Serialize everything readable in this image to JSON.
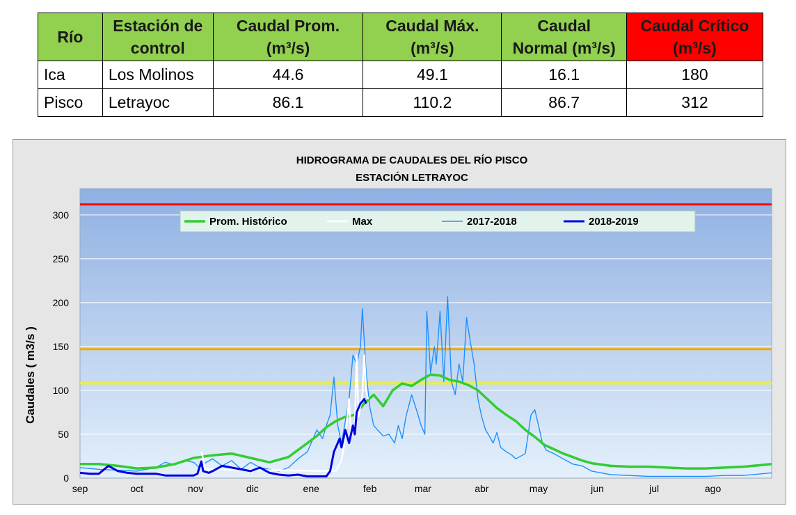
{
  "table": {
    "headers": [
      "Río",
      "Estación de\ncontrol",
      "Caudal Prom.\n(m³/s)",
      "Caudal Máx.\n(m³/s)",
      "Caudal\nNormal (m³/s)",
      "Caudal Crítico\n(m³/s)"
    ],
    "rows": [
      [
        "Ica",
        "Los Molinos",
        "44.6",
        "49.1",
        "16.1",
        "180"
      ],
      [
        "Pisco",
        "Letrayoc",
        "86.1",
        "110.2",
        "86.7",
        "312"
      ]
    ],
    "colors": {
      "header_bg": "#92d050",
      "critical_bg": "#ff0000"
    }
  },
  "chart_data": {
    "type": "line",
    "title": "HIDROGRAMA DE CAUDALES DEL RÍO PISCO",
    "subtitle": "ESTACIÓN LETRAYOC",
    "ylabel": "Caudales ( m3/s )",
    "xlabel": "",
    "ylim": [
      0,
      330
    ],
    "yticks": [
      0,
      50,
      100,
      150,
      200,
      250,
      300
    ],
    "x_range_days": [
      0,
      365
    ],
    "months": [
      {
        "label": "sep",
        "day": 0
      },
      {
        "label": "oct",
        "day": 30
      },
      {
        "label": "nov",
        "day": 61
      },
      {
        "label": "dic",
        "day": 91
      },
      {
        "label": "ene",
        "day": 122
      },
      {
        "label": "feb",
        "day": 153
      },
      {
        "label": "mar",
        "day": 181
      },
      {
        "label": "abr",
        "day": 212
      },
      {
        "label": "may",
        "day": 242
      },
      {
        "label": "jun",
        "day": 273
      },
      {
        "label": "jul",
        "day": 303
      },
      {
        "label": "ago",
        "day": 334
      }
    ],
    "legend": {
      "placement": "top",
      "entries": [
        "Prom. Histórico",
        "Max",
        "2017-2018",
        "2018-2019"
      ]
    },
    "thresholds": [
      {
        "value": 312,
        "color": "#ff0000"
      },
      {
        "value": 147,
        "color": "#f2a900"
      },
      {
        "value": 108,
        "color": "#f5f500"
      }
    ],
    "series": [
      {
        "name": "Prom. Histórico",
        "color": "#33cc33",
        "points": [
          [
            0,
            16
          ],
          [
            10,
            16
          ],
          [
            20,
            14
          ],
          [
            30,
            11
          ],
          [
            40,
            12
          ],
          [
            50,
            16
          ],
          [
            60,
            23
          ],
          [
            70,
            26
          ],
          [
            80,
            28
          ],
          [
            90,
            23
          ],
          [
            100,
            18
          ],
          [
            110,
            24
          ],
          [
            120,
            40
          ],
          [
            125,
            48
          ],
          [
            130,
            58
          ],
          [
            135,
            65
          ],
          [
            140,
            70
          ],
          [
            145,
            72
          ],
          [
            150,
            85
          ],
          [
            155,
            95
          ],
          [
            160,
            82
          ],
          [
            165,
            100
          ],
          [
            170,
            108
          ],
          [
            175,
            105
          ],
          [
            180,
            112
          ],
          [
            185,
            118
          ],
          [
            190,
            117
          ],
          [
            195,
            112
          ],
          [
            200,
            110
          ],
          [
            205,
            106
          ],
          [
            210,
            100
          ],
          [
            215,
            90
          ],
          [
            220,
            80
          ],
          [
            225,
            72
          ],
          [
            230,
            65
          ],
          [
            235,
            55
          ],
          [
            240,
            47
          ],
          [
            245,
            38
          ],
          [
            250,
            33
          ],
          [
            255,
            28
          ],
          [
            260,
            24
          ],
          [
            265,
            20
          ],
          [
            270,
            17
          ],
          [
            280,
            14
          ],
          [
            290,
            13
          ],
          [
            300,
            13
          ],
          [
            310,
            12
          ],
          [
            320,
            11
          ],
          [
            330,
            11
          ],
          [
            340,
            12
          ],
          [
            350,
            13
          ],
          [
            360,
            15
          ],
          [
            365,
            16
          ]
        ]
      },
      {
        "name": "Max",
        "color": "#ffffff",
        "points": [
          [
            64,
            30
          ],
          [
            65,
            22
          ],
          [
            66,
            10
          ],
          [
            135,
            8
          ],
          [
            138,
            20
          ],
          [
            140,
            45
          ],
          [
            142,
            90
          ],
          [
            143,
            50
          ],
          [
            145,
            60
          ],
          [
            146,
            140
          ],
          [
            147,
            70
          ],
          [
            149,
            95
          ],
          [
            150,
            140
          ],
          [
            151,
            100
          ],
          [
            152,
            90
          ]
        ]
      },
      {
        "name": "2017-2018",
        "color": "#1e90ff",
        "points": [
          [
            0,
            12
          ],
          [
            10,
            10
          ],
          [
            20,
            9
          ],
          [
            30,
            8
          ],
          [
            40,
            12
          ],
          [
            45,
            18
          ],
          [
            50,
            15
          ],
          [
            55,
            20
          ],
          [
            60,
            18
          ],
          [
            63,
            12
          ],
          [
            65,
            16
          ],
          [
            70,
            22
          ],
          [
            75,
            14
          ],
          [
            80,
            20
          ],
          [
            85,
            10
          ],
          [
            90,
            18
          ],
          [
            95,
            12
          ],
          [
            100,
            10
          ],
          [
            105,
            8
          ],
          [
            110,
            12
          ],
          [
            115,
            22
          ],
          [
            120,
            30
          ],
          [
            125,
            55
          ],
          [
            128,
            45
          ],
          [
            130,
            60
          ],
          [
            132,
            72
          ],
          [
            134,
            115
          ],
          [
            136,
            60
          ],
          [
            138,
            40
          ],
          [
            140,
            65
          ],
          [
            142,
            90
          ],
          [
            144,
            140
          ],
          [
            146,
            130
          ],
          [
            148,
            150
          ],
          [
            149,
            193
          ],
          [
            151,
            120
          ],
          [
            153,
            80
          ],
          [
            155,
            60
          ],
          [
            157,
            55
          ],
          [
            160,
            48
          ],
          [
            163,
            50
          ],
          [
            166,
            40
          ],
          [
            168,
            60
          ],
          [
            170,
            45
          ],
          [
            172,
            70
          ],
          [
            175,
            95
          ],
          [
            178,
            75
          ],
          [
            180,
            60
          ],
          [
            182,
            50
          ],
          [
            183,
            190
          ],
          [
            185,
            120
          ],
          [
            187,
            150
          ],
          [
            188,
            130
          ],
          [
            190,
            190
          ],
          [
            192,
            110
          ],
          [
            194,
            207
          ],
          [
            196,
            110
          ],
          [
            198,
            95
          ],
          [
            200,
            130
          ],
          [
            202,
            110
          ],
          [
            204,
            183
          ],
          [
            206,
            155
          ],
          [
            208,
            130
          ],
          [
            210,
            90
          ],
          [
            212,
            70
          ],
          [
            214,
            55
          ],
          [
            216,
            48
          ],
          [
            218,
            40
          ],
          [
            220,
            52
          ],
          [
            222,
            35
          ],
          [
            225,
            30
          ],
          [
            228,
            26
          ],
          [
            230,
            22
          ],
          [
            235,
            28
          ],
          [
            238,
            72
          ],
          [
            240,
            78
          ],
          [
            242,
            60
          ],
          [
            244,
            40
          ],
          [
            246,
            32
          ],
          [
            250,
            28
          ],
          [
            255,
            22
          ],
          [
            260,
            16
          ],
          [
            265,
            14
          ],
          [
            270,
            8
          ],
          [
            275,
            6
          ],
          [
            280,
            4
          ],
          [
            290,
            3
          ],
          [
            300,
            2
          ],
          [
            310,
            2
          ],
          [
            320,
            2
          ],
          [
            330,
            2
          ],
          [
            340,
            3
          ],
          [
            350,
            3
          ],
          [
            360,
            5
          ],
          [
            365,
            6
          ]
        ]
      },
      {
        "name": "2018-2019",
        "color": "#0000e0",
        "points": [
          [
            0,
            6
          ],
          [
            5,
            5
          ],
          [
            10,
            5
          ],
          [
            15,
            14
          ],
          [
            20,
            8
          ],
          [
            25,
            6
          ],
          [
            30,
            5
          ],
          [
            35,
            5
          ],
          [
            40,
            5
          ],
          [
            45,
            3
          ],
          [
            50,
            3
          ],
          [
            55,
            3
          ],
          [
            60,
            3
          ],
          [
            62,
            5
          ],
          [
            64,
            19
          ],
          [
            65,
            8
          ],
          [
            68,
            6
          ],
          [
            70,
            8
          ],
          [
            75,
            14
          ],
          [
            80,
            12
          ],
          [
            85,
            10
          ],
          [
            90,
            8
          ],
          [
            95,
            12
          ],
          [
            100,
            6
          ],
          [
            105,
            4
          ],
          [
            110,
            3
          ],
          [
            115,
            4
          ],
          [
            120,
            2
          ],
          [
            125,
            2
          ],
          [
            130,
            2
          ],
          [
            132,
            8
          ],
          [
            134,
            30
          ],
          [
            136,
            40
          ],
          [
            137,
            45
          ],
          [
            138,
            35
          ],
          [
            140,
            55
          ],
          [
            142,
            40
          ],
          [
            144,
            60
          ],
          [
            145,
            50
          ],
          [
            146,
            75
          ],
          [
            148,
            85
          ],
          [
            150,
            90
          ],
          [
            151,
            85
          ]
        ]
      }
    ]
  }
}
